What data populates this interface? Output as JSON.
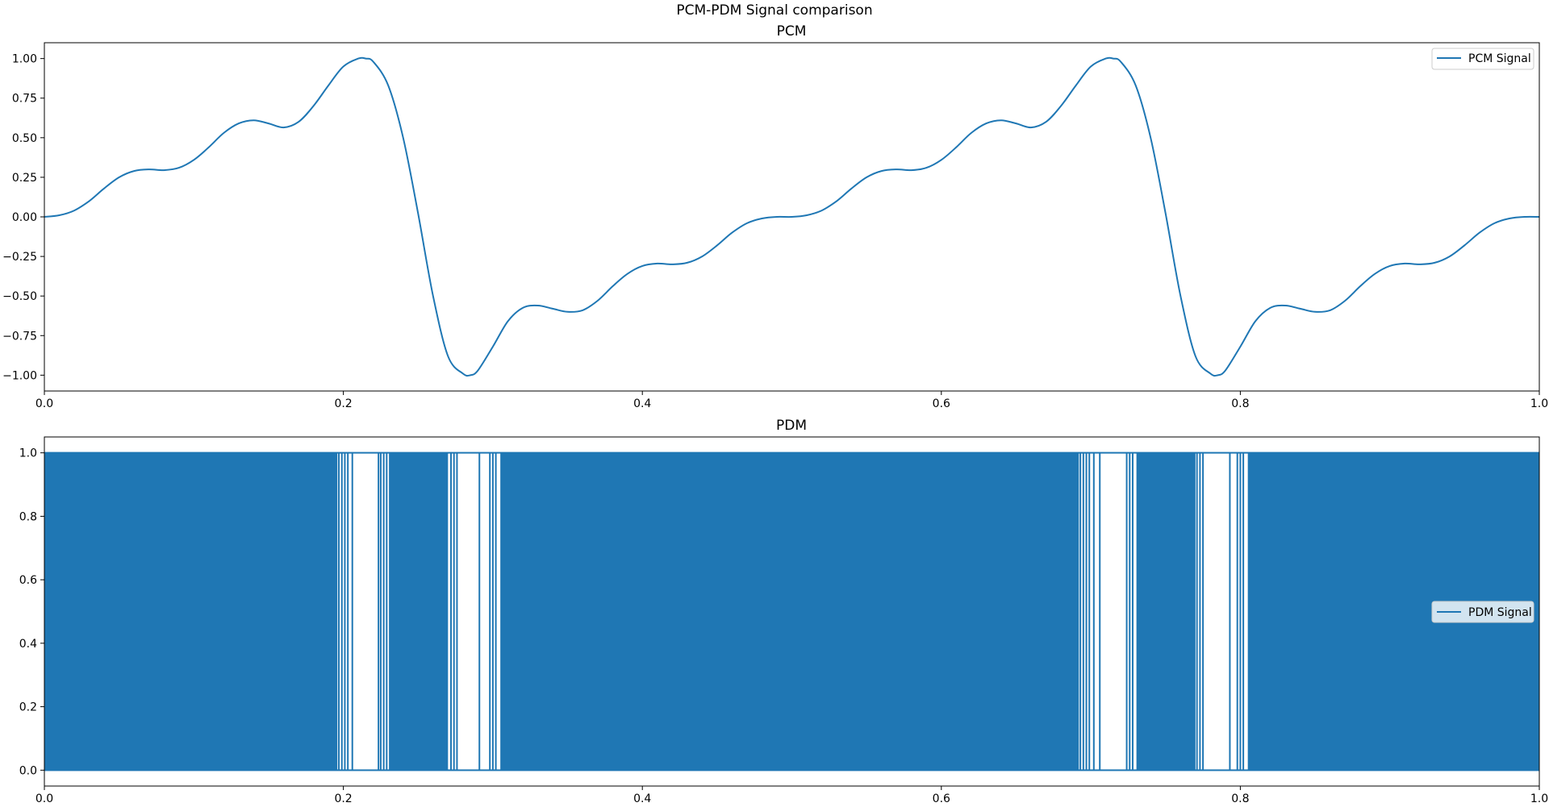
{
  "figure": {
    "suptitle": "PCM-PDM Signal comparison"
  },
  "colors": {
    "series": "#1f77b4",
    "axes": "#000000",
    "background": "#ffffff"
  },
  "chart_data": [
    {
      "type": "line",
      "title": "PCM",
      "xlabel": "",
      "ylabel": "",
      "xlim": [
        0.0,
        1.0
      ],
      "ylim": [
        -1.1,
        1.1
      ],
      "x_ticks": [
        "0.0",
        "0.2",
        "0.4",
        "0.6",
        "0.8",
        "1.0"
      ],
      "y_ticks": [
        "1.00",
        "0.75",
        "0.50",
        "0.25",
        "0.00",
        "−0.25",
        "−0.50",
        "−0.75",
        "−1.00"
      ],
      "grid": false,
      "legend": {
        "placement": "top-right"
      },
      "series": [
        {
          "name": "PCM Signal",
          "x": [
            0,
            0.01,
            0.02,
            0.03,
            0.04,
            0.05,
            0.06,
            0.07,
            0.08,
            0.09,
            0.1,
            0.11,
            0.12,
            0.13,
            0.14,
            0.15,
            0.16,
            0.17,
            0.18,
            0.19,
            0.2,
            0.21,
            0.215,
            0.22,
            0.23,
            0.24,
            0.25,
            0.26,
            0.27,
            0.28,
            0.285,
            0.29,
            0.3,
            0.31,
            0.32,
            0.33,
            0.34,
            0.35,
            0.36,
            0.37,
            0.38,
            0.39,
            0.4,
            0.41,
            0.42,
            0.43,
            0.44,
            0.45,
            0.46,
            0.47,
            0.48,
            0.49,
            0.5,
            0.51,
            0.52,
            0.53,
            0.54,
            0.55,
            0.56,
            0.57,
            0.58,
            0.59,
            0.6,
            0.61,
            0.62,
            0.63,
            0.64,
            0.65,
            0.66,
            0.67,
            0.68,
            0.69,
            0.7,
            0.71,
            0.715,
            0.72,
            0.73,
            0.74,
            0.75,
            0.76,
            0.77,
            0.78,
            0.785,
            0.79,
            0.8,
            0.81,
            0.82,
            0.83,
            0.84,
            0.85,
            0.86,
            0.87,
            0.88,
            0.89,
            0.9,
            0.91,
            0.92,
            0.93,
            0.94,
            0.95,
            0.96,
            0.97,
            0.98,
            0.99,
            1.0
          ],
          "y": [
            0.0,
            0.01,
            0.04,
            0.1,
            0.18,
            0.25,
            0.29,
            0.3,
            0.295,
            0.31,
            0.36,
            0.44,
            0.53,
            0.59,
            0.61,
            0.59,
            0.565,
            0.6,
            0.7,
            0.83,
            0.95,
            1.0,
            1.0,
            0.98,
            0.83,
            0.5,
            0.02,
            -0.5,
            -0.88,
            -0.99,
            -1.0,
            -0.97,
            -0.82,
            -0.66,
            -0.575,
            -0.56,
            -0.58,
            -0.6,
            -0.59,
            -0.53,
            -0.44,
            -0.36,
            -0.31,
            -0.295,
            -0.3,
            -0.29,
            -0.25,
            -0.18,
            -0.1,
            -0.04,
            -0.01,
            0.0,
            0.0,
            0.01,
            0.04,
            0.1,
            0.18,
            0.25,
            0.29,
            0.3,
            0.295,
            0.31,
            0.36,
            0.44,
            0.53,
            0.59,
            0.61,
            0.59,
            0.565,
            0.6,
            0.7,
            0.83,
            0.95,
            1.0,
            1.0,
            0.98,
            0.83,
            0.5,
            0.02,
            -0.5,
            -0.88,
            -0.99,
            -1.0,
            -0.97,
            -0.82,
            -0.66,
            -0.575,
            -0.56,
            -0.58,
            -0.6,
            -0.59,
            -0.53,
            -0.44,
            -0.36,
            -0.31,
            -0.295,
            -0.3,
            -0.29,
            -0.25,
            -0.18,
            -0.1,
            -0.04,
            -0.01,
            0.0,
            0.0
          ]
        }
      ]
    },
    {
      "type": "area",
      "title": "PDM",
      "xlabel": "",
      "ylabel": "",
      "xlim": [
        0.0,
        1.0
      ],
      "ylim": [
        -0.05,
        1.05
      ],
      "x_ticks": [
        "0.0",
        "0.2",
        "0.4",
        "0.6",
        "0.8",
        "1.0"
      ],
      "y_ticks": [
        "1.0",
        "0.8",
        "0.6",
        "0.4",
        "0.2",
        "0.0"
      ],
      "grid": false,
      "legend": {
        "placement": "center-right"
      },
      "series": [
        {
          "name": "PDM Signal",
          "levels": [
            0,
            1
          ],
          "dense_ranges": [
            [
              0.0,
              0.196
            ],
            [
              0.2305,
              0.27
            ],
            [
              0.305,
              0.692
            ],
            [
              0.7305,
              0.77
            ],
            [
              0.805,
              1.0
            ]
          ],
          "pulse_lines": [
            0.197,
            0.199,
            0.201,
            0.203,
            0.206,
            0.2235,
            0.225,
            0.227,
            0.229,
            0.272,
            0.274,
            0.276,
            0.291,
            0.298,
            0.3,
            0.302,
            0.693,
            0.695,
            0.697,
            0.699,
            0.702,
            0.706,
            0.724,
            0.726,
            0.728,
            0.771,
            0.773,
            0.775,
            0.793,
            0.798,
            0.8,
            0.802
          ]
        }
      ]
    }
  ]
}
